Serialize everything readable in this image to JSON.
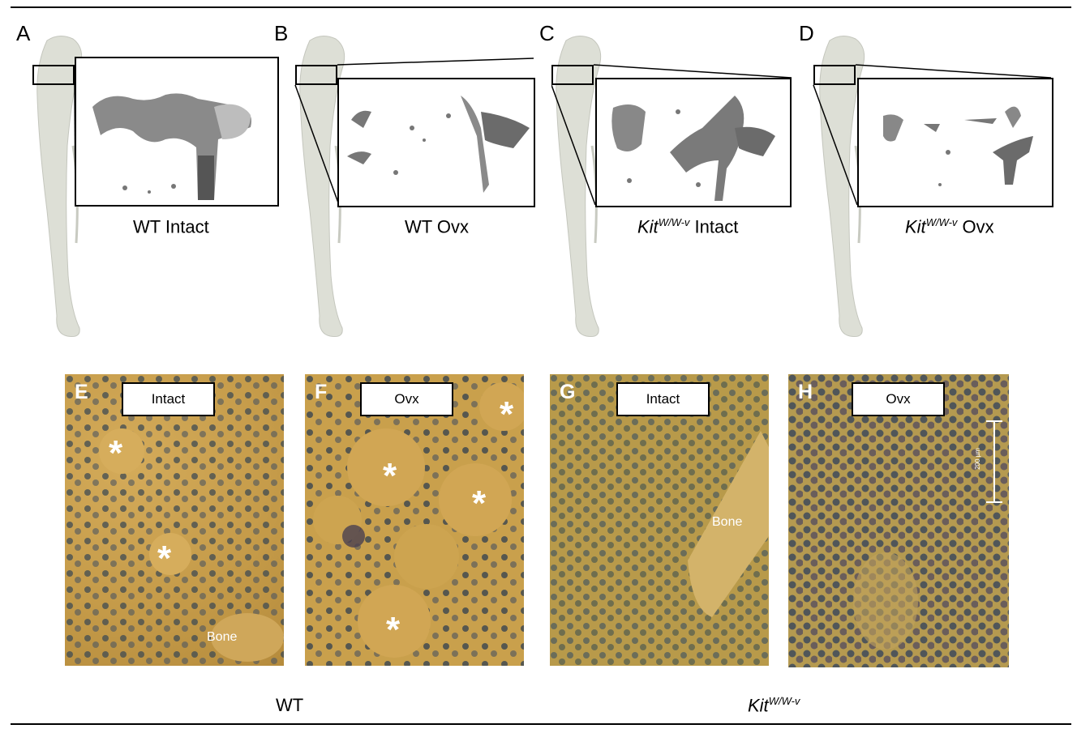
{
  "top_panels": [
    {
      "letter": "A",
      "caption_main": "WT Intact",
      "caption_italic": "",
      "caption_sup": ""
    },
    {
      "letter": "B",
      "caption_main": "WT Ovx",
      "caption_italic": "",
      "caption_sup": ""
    },
    {
      "letter": "C",
      "caption_main": " Intact",
      "caption_italic": "Kit",
      "caption_sup": "W/W-v"
    },
    {
      "letter": "D",
      "caption_main": " Ovx",
      "caption_italic": "Kit",
      "caption_sup": "W/W-v"
    }
  ],
  "micro_panels": [
    {
      "letter": "E",
      "label": "Intact",
      "bone_label": "Bone"
    },
    {
      "letter": "F",
      "label": "Ovx"
    },
    {
      "letter": "G",
      "label": "Intact",
      "bone_label": "Bone"
    },
    {
      "letter": "H",
      "label": "Ovx",
      "scale_label": "200 µm"
    }
  ],
  "asterisk": "*",
  "group_labels": {
    "wt": "WT",
    "kit_italic": "Kit",
    "kit_sup": "W/W-v"
  },
  "colors": {
    "tissue_wt": "#c9a04c",
    "tissue_kit": "#b89a4a",
    "cell_dark": "#3a4a5a",
    "bone_gray": "#d9dcd3",
    "trabecula": "#777777"
  }
}
